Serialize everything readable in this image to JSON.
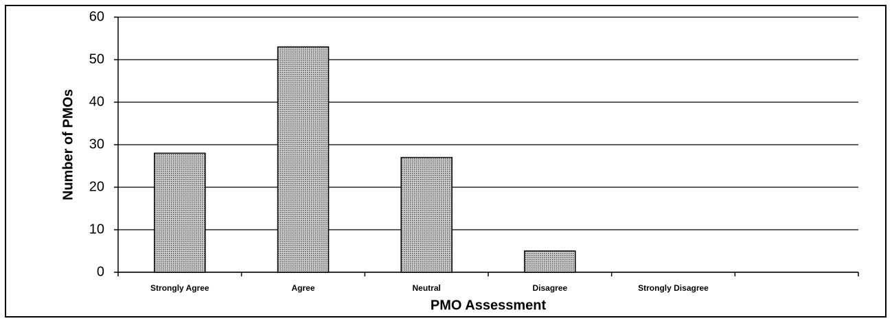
{
  "chart_data": {
    "type": "bar",
    "xlabel": "PMO Assessment",
    "ylabel": "Number of PMOs",
    "categories": [
      "Strongly Agree",
      "Agree",
      "Neutral",
      "Disagree",
      "Strongly Disagree",
      null
    ],
    "values": [
      28,
      53,
      27,
      5,
      0,
      null
    ],
    "color": "#9a9a9a",
    "ylim": [
      0,
      60
    ],
    "yticks": [
      0,
      10,
      20,
      30,
      40,
      50,
      60
    ],
    "grid": true
  }
}
